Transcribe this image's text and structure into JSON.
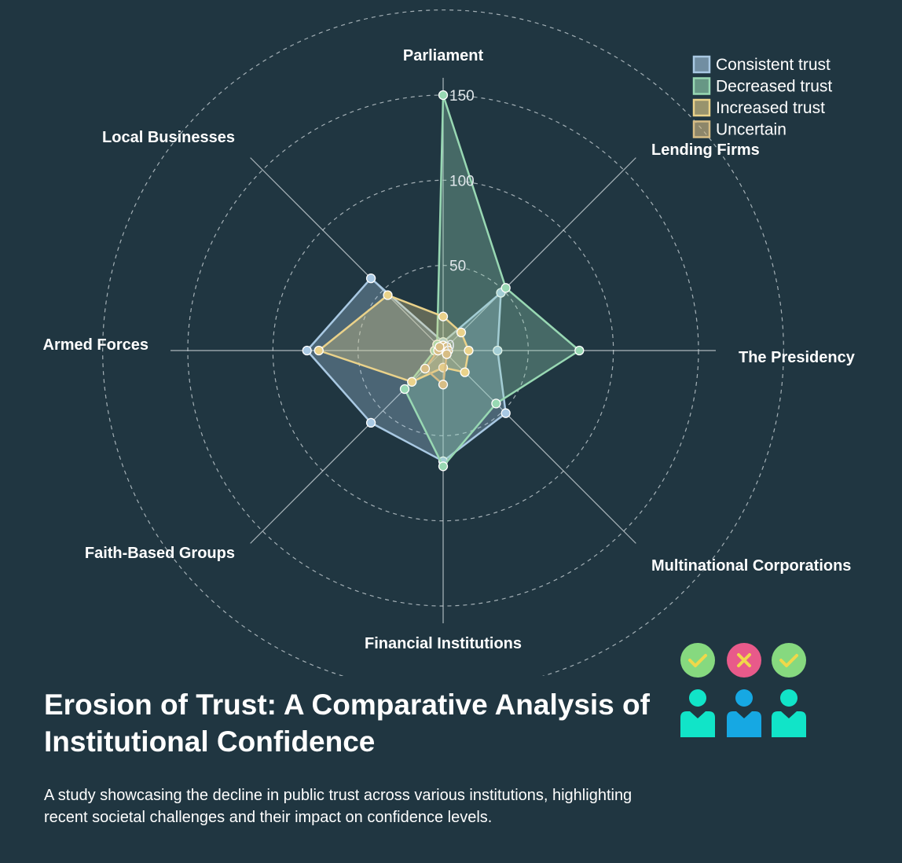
{
  "title": "Erosion of Trust: A Comparative Analysis of Institutional Confidence",
  "subtitle": "A study showcasing the decline in public trust across various institutions, highlighting recent societal challenges and their impact on confidence levels.",
  "chart_data": {
    "type": "radar",
    "axes": [
      "Parliament",
      "Lending Firms",
      "The Presidency",
      "Multinational Corporations",
      "Financial Institutions",
      "Faith-Based Groups",
      "Armed Forces",
      "Local Businesses"
    ],
    "rticks": [
      50,
      100,
      150
    ],
    "rtick_labels": [
      "50",
      "100",
      "150"
    ],
    "inner_tick_label": "0",
    "rmax": 150,
    "grid": true,
    "legend_position": "top-right",
    "series": [
      {
        "name": "Consistent trust",
        "values": [
          5,
          48,
          32,
          52,
          65,
          60,
          80,
          60
        ],
        "color": "#a9c9e3"
      },
      {
        "name": "Decreased trust",
        "values": [
          150,
          52,
          80,
          44,
          68,
          32,
          5,
          5
        ],
        "color": "#98d8b3"
      },
      {
        "name": "Increased trust",
        "values": [
          20,
          15,
          15,
          18,
          10,
          26,
          73,
          46
        ],
        "color": "#ead28a"
      },
      {
        "name": "Uncertain",
        "values": [
          3,
          3,
          3,
          3,
          20,
          15,
          3,
          3
        ],
        "color": "#d7bd85"
      }
    ]
  },
  "icons": [
    "check-circle-icon",
    "cross-circle-icon",
    "check-circle-icon",
    "person-icon",
    "person-icon",
    "person-icon"
  ],
  "icon_colors": {
    "check": "#86d97f",
    "cross": "#e85a8a",
    "person_a": "#11e4c8",
    "person_b": "#16a8e3",
    "mark": "#f0d84a"
  }
}
